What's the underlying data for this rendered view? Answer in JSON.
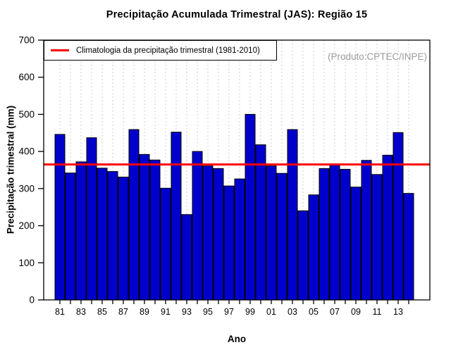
{
  "title": "Precipitação Acumulada Trimestral (JAS): Região 15",
  "watermark": "(Produto:CPTEC/INPE)",
  "legend": {
    "label": "Climatologia da precipitação trimestral (1981-2010)"
  },
  "chart_data": {
    "type": "bar",
    "title": "Precipitação Acumulada Trimestral (JAS): Região 15",
    "xlabel": "Ano",
    "ylabel": "Precipitação trimestral (mm)",
    "ylim": [
      0,
      700
    ],
    "yticks": [
      0,
      100,
      200,
      300,
      400,
      500,
      600,
      700
    ],
    "years": [
      1981,
      1982,
      1983,
      1984,
      1985,
      1986,
      1987,
      1988,
      1989,
      1990,
      1991,
      1992,
      1993,
      1994,
      1995,
      1996,
      1997,
      1998,
      1999,
      2000,
      2001,
      2002,
      2003,
      2004,
      2005,
      2006,
      2007,
      2008,
      2009,
      2010,
      2011,
      2012,
      2013,
      2014
    ],
    "values": [
      446,
      342,
      372,
      437,
      355,
      346,
      331,
      459,
      392,
      377,
      301,
      452,
      230,
      400,
      361,
      354,
      307,
      326,
      500,
      418,
      361,
      341,
      459,
      240,
      283,
      354,
      363,
      352,
      304,
      376,
      338,
      390,
      451,
      287
    ],
    "xtick_labels": [
      "81",
      "83",
      "85",
      "87",
      "89",
      "91",
      "93",
      "95",
      "97",
      "99",
      "01",
      "03",
      "05",
      "07",
      "09",
      "11",
      "13"
    ],
    "climatology": {
      "label": "Climatologia da precipitação trimestral (1981-2010)",
      "period": "1981-2010",
      "value": 365,
      "color": "#FF0000"
    },
    "bar_color": "#0000CD",
    "bar_border_color": "#000000",
    "grid": {
      "vertical": true,
      "style": "dashed",
      "color": "#CFCFCF"
    },
    "legend_position": "top-left",
    "watermark": "(Produto:CPTEC/INPE)",
    "watermark_color": "#9C9C9C"
  }
}
